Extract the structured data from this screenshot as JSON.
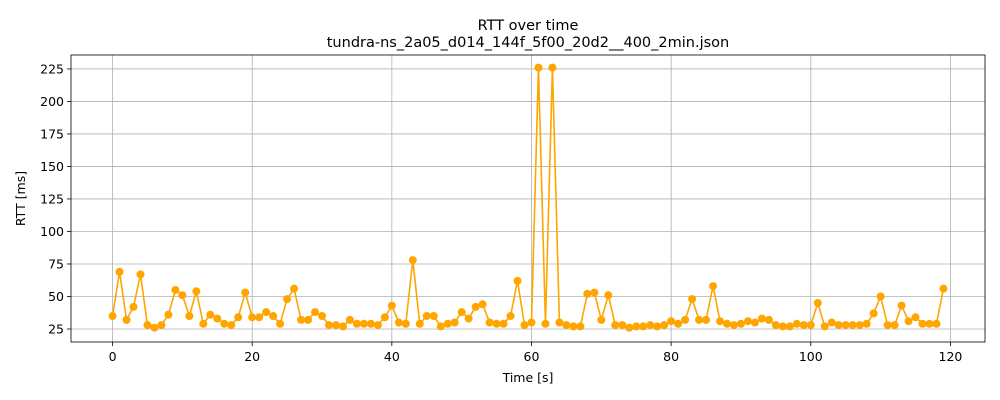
{
  "chart_data": {
    "type": "line",
    "title": "RTT over time",
    "subtitle": "tundra-ns_2a05_d014_144f_5f00_20d2__400_2min.json",
    "xlabel": "Time [s]",
    "ylabel": "RTT [ms]",
    "xlim": [
      -5.95,
      124.95
    ],
    "ylim": [
      15.0,
      235.7
    ],
    "xticks": [
      0,
      20,
      40,
      60,
      80,
      100,
      120
    ],
    "yticks": [
      25,
      50,
      75,
      100,
      125,
      150,
      175,
      200,
      225
    ],
    "grid": true,
    "color": "#ffa500",
    "marker": "circle",
    "series": [
      {
        "x": [
          0,
          1,
          2,
          3,
          4,
          5,
          6,
          7,
          8,
          9,
          10,
          11,
          12,
          13,
          14,
          15,
          16,
          17,
          18,
          19,
          20,
          21,
          22,
          23,
          24,
          25,
          26,
          27,
          28,
          29,
          30,
          31,
          32,
          33,
          34,
          35,
          36,
          37,
          38,
          39,
          40,
          41,
          42,
          43,
          44,
          45,
          46,
          47,
          48,
          49,
          50,
          51,
          52,
          53,
          54,
          55,
          56,
          57,
          58,
          59,
          60,
          61,
          62,
          63,
          64,
          65,
          66,
          67,
          68,
          69,
          70,
          71,
          72,
          73,
          74,
          75,
          76,
          77,
          78,
          79,
          80,
          81,
          82,
          83,
          84,
          85,
          86,
          87,
          88,
          89,
          90,
          91,
          92,
          93,
          94,
          95,
          96,
          97,
          98,
          99,
          100,
          101,
          102,
          103,
          104,
          105,
          106,
          107,
          108,
          109,
          110,
          111,
          112,
          113,
          114,
          115,
          116,
          117,
          118,
          119
        ],
        "values": [
          35,
          69,
          32,
          42,
          67,
          28,
          26,
          28,
          36,
          55,
          51,
          35,
          54,
          29,
          36,
          33,
          29,
          28,
          34,
          53,
          34,
          34,
          38,
          35,
          29,
          48,
          56,
          32,
          32,
          38,
          35,
          28,
          28,
          27,
          32,
          29,
          29,
          29,
          28,
          34,
          43,
          30,
          29,
          78,
          29,
          35,
          35,
          27,
          29,
          30,
          38,
          33,
          42,
          44,
          30,
          29,
          29,
          35,
          62,
          28,
          30,
          226,
          29,
          226,
          30,
          28,
          27,
          27,
          52,
          53,
          32,
          51,
          28,
          28,
          26,
          27,
          27,
          28,
          27,
          28,
          31,
          29,
          32,
          48,
          32,
          32,
          58,
          31,
          29,
          28,
          29,
          31,
          30,
          33,
          32,
          28,
          27,
          27,
          29,
          28,
          28,
          45,
          27,
          30,
          28,
          28,
          28,
          28,
          29,
          37,
          50,
          28,
          28,
          43,
          31,
          34,
          29,
          29,
          29,
          56
        ]
      }
    ]
  }
}
